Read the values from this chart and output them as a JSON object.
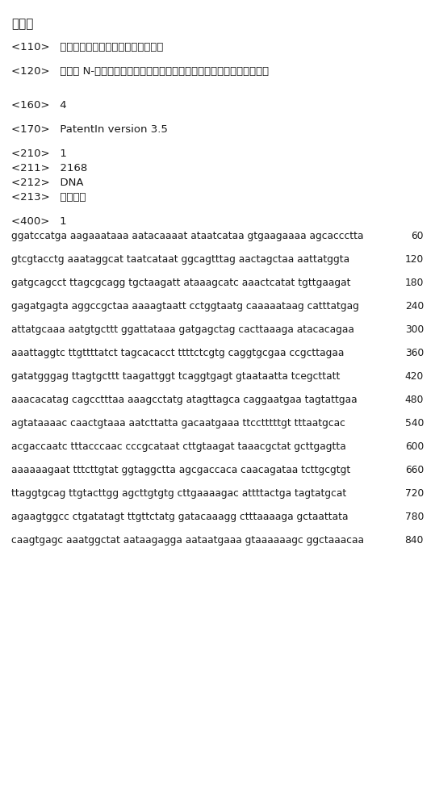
{
  "background_color": "#ffffff",
  "text_color": "#1a1a1a",
  "header_lines": [
    {
      "text": "序列表",
      "indent": 0,
      "blank_after": true,
      "is_title": true
    },
    {
      "text": "<110>   武汉中科光谷绿色生物技术有限公司",
      "indent": 0,
      "blank_after": true
    },
    {
      "text": "<120>   一种产 N-乙酰神经氨酸枯草芽孢杆菌基因工程菌的及其构建方法和应用",
      "indent": 0,
      "blank_after": true
    },
    {
      "text": "",
      "indent": 0,
      "blank_after": false
    },
    {
      "text": "<160>    4",
      "indent": 0,
      "blank_after": true
    },
    {
      "text": "<170>    PatentIn version 3.5",
      "indent": 0,
      "blank_after": true
    },
    {
      "text": "<210>    1",
      "indent": 0,
      "blank_after": false
    },
    {
      "text": "<211>    2168",
      "indent": 0,
      "blank_after": false
    },
    {
      "text": "<212>    DNA",
      "indent": 0,
      "blank_after": false
    },
    {
      "text": "<213>    人工序列",
      "indent": 0,
      "blank_after": true
    },
    {
      "text": "<400>    1",
      "indent": 0,
      "blank_after": false
    }
  ],
  "seq_lines": [
    {
      "seq": "ggatccatga aagaaataaa aatacaaaat ataatcataa gtgaagaaaa agcaccctta",
      "num": "60"
    },
    {
      "seq": "gtcgtacctg aaataggcat taatcataat ggcagtttag aactagctaa aattatggta",
      "num": "120"
    },
    {
      "seq": "gatgcagcct ttagcgcagg tgctaagatt ataaagcatc aaactcatat tgttgaagat",
      "num": "180"
    },
    {
      "seq": "gagatgagta aggccgctaa aaaagtaatt cctggtaatg caaaaataag catttatgag",
      "num": "240"
    },
    {
      "seq": "attatgcaaa aatgtgcttt ggattataaa gatgagctag cacttaaaga atacacagaa",
      "num": "300"
    },
    {
      "seq": "aaattaggtc ttgttttatct tagcacacct ttttctcgtg caggtgcgaa ccgcttagaa",
      "num": "360"
    },
    {
      "seq": "gatatgggag ttagtgcttt taagattggt tcaggtgagt gtaataatta tcegcttatt",
      "num": "420"
    },
    {
      "seq": "aaacacatag cagcctttaa aaagcctatg atagttagca caggaatgaa tagtattgaa",
      "num": "480"
    },
    {
      "seq": "agtataaaac caactgtaaa aatcttatta gacaatgaaa ttcctttttgt tttaatgcac",
      "num": "540"
    },
    {
      "seq": "acgaccaatc tttacccaac cccgcataat cttgtaagat taaacgctat gcttgagtta",
      "num": "600"
    },
    {
      "seq": "aaaaaagaat tttcttgtat ggtaggctta agcgaccaca caacagataa tcttgcgtgt",
      "num": "660"
    },
    {
      "seq": "ttaggtgcag ttgtacttgg agcttgtgtg cttgaaaagac attttactga tagtatgcat",
      "num": "720"
    },
    {
      "seq": "agaagtggcc ctgatatagt ttgttctatg gatacaaagg ctttaaaaga gctaattata",
      "num": "780"
    },
    {
      "seq": "caagtgagc aaatggctat aataagagga aataatgaaa gtaaaaaagc ggctaaacaa",
      "num": "840"
    }
  ]
}
